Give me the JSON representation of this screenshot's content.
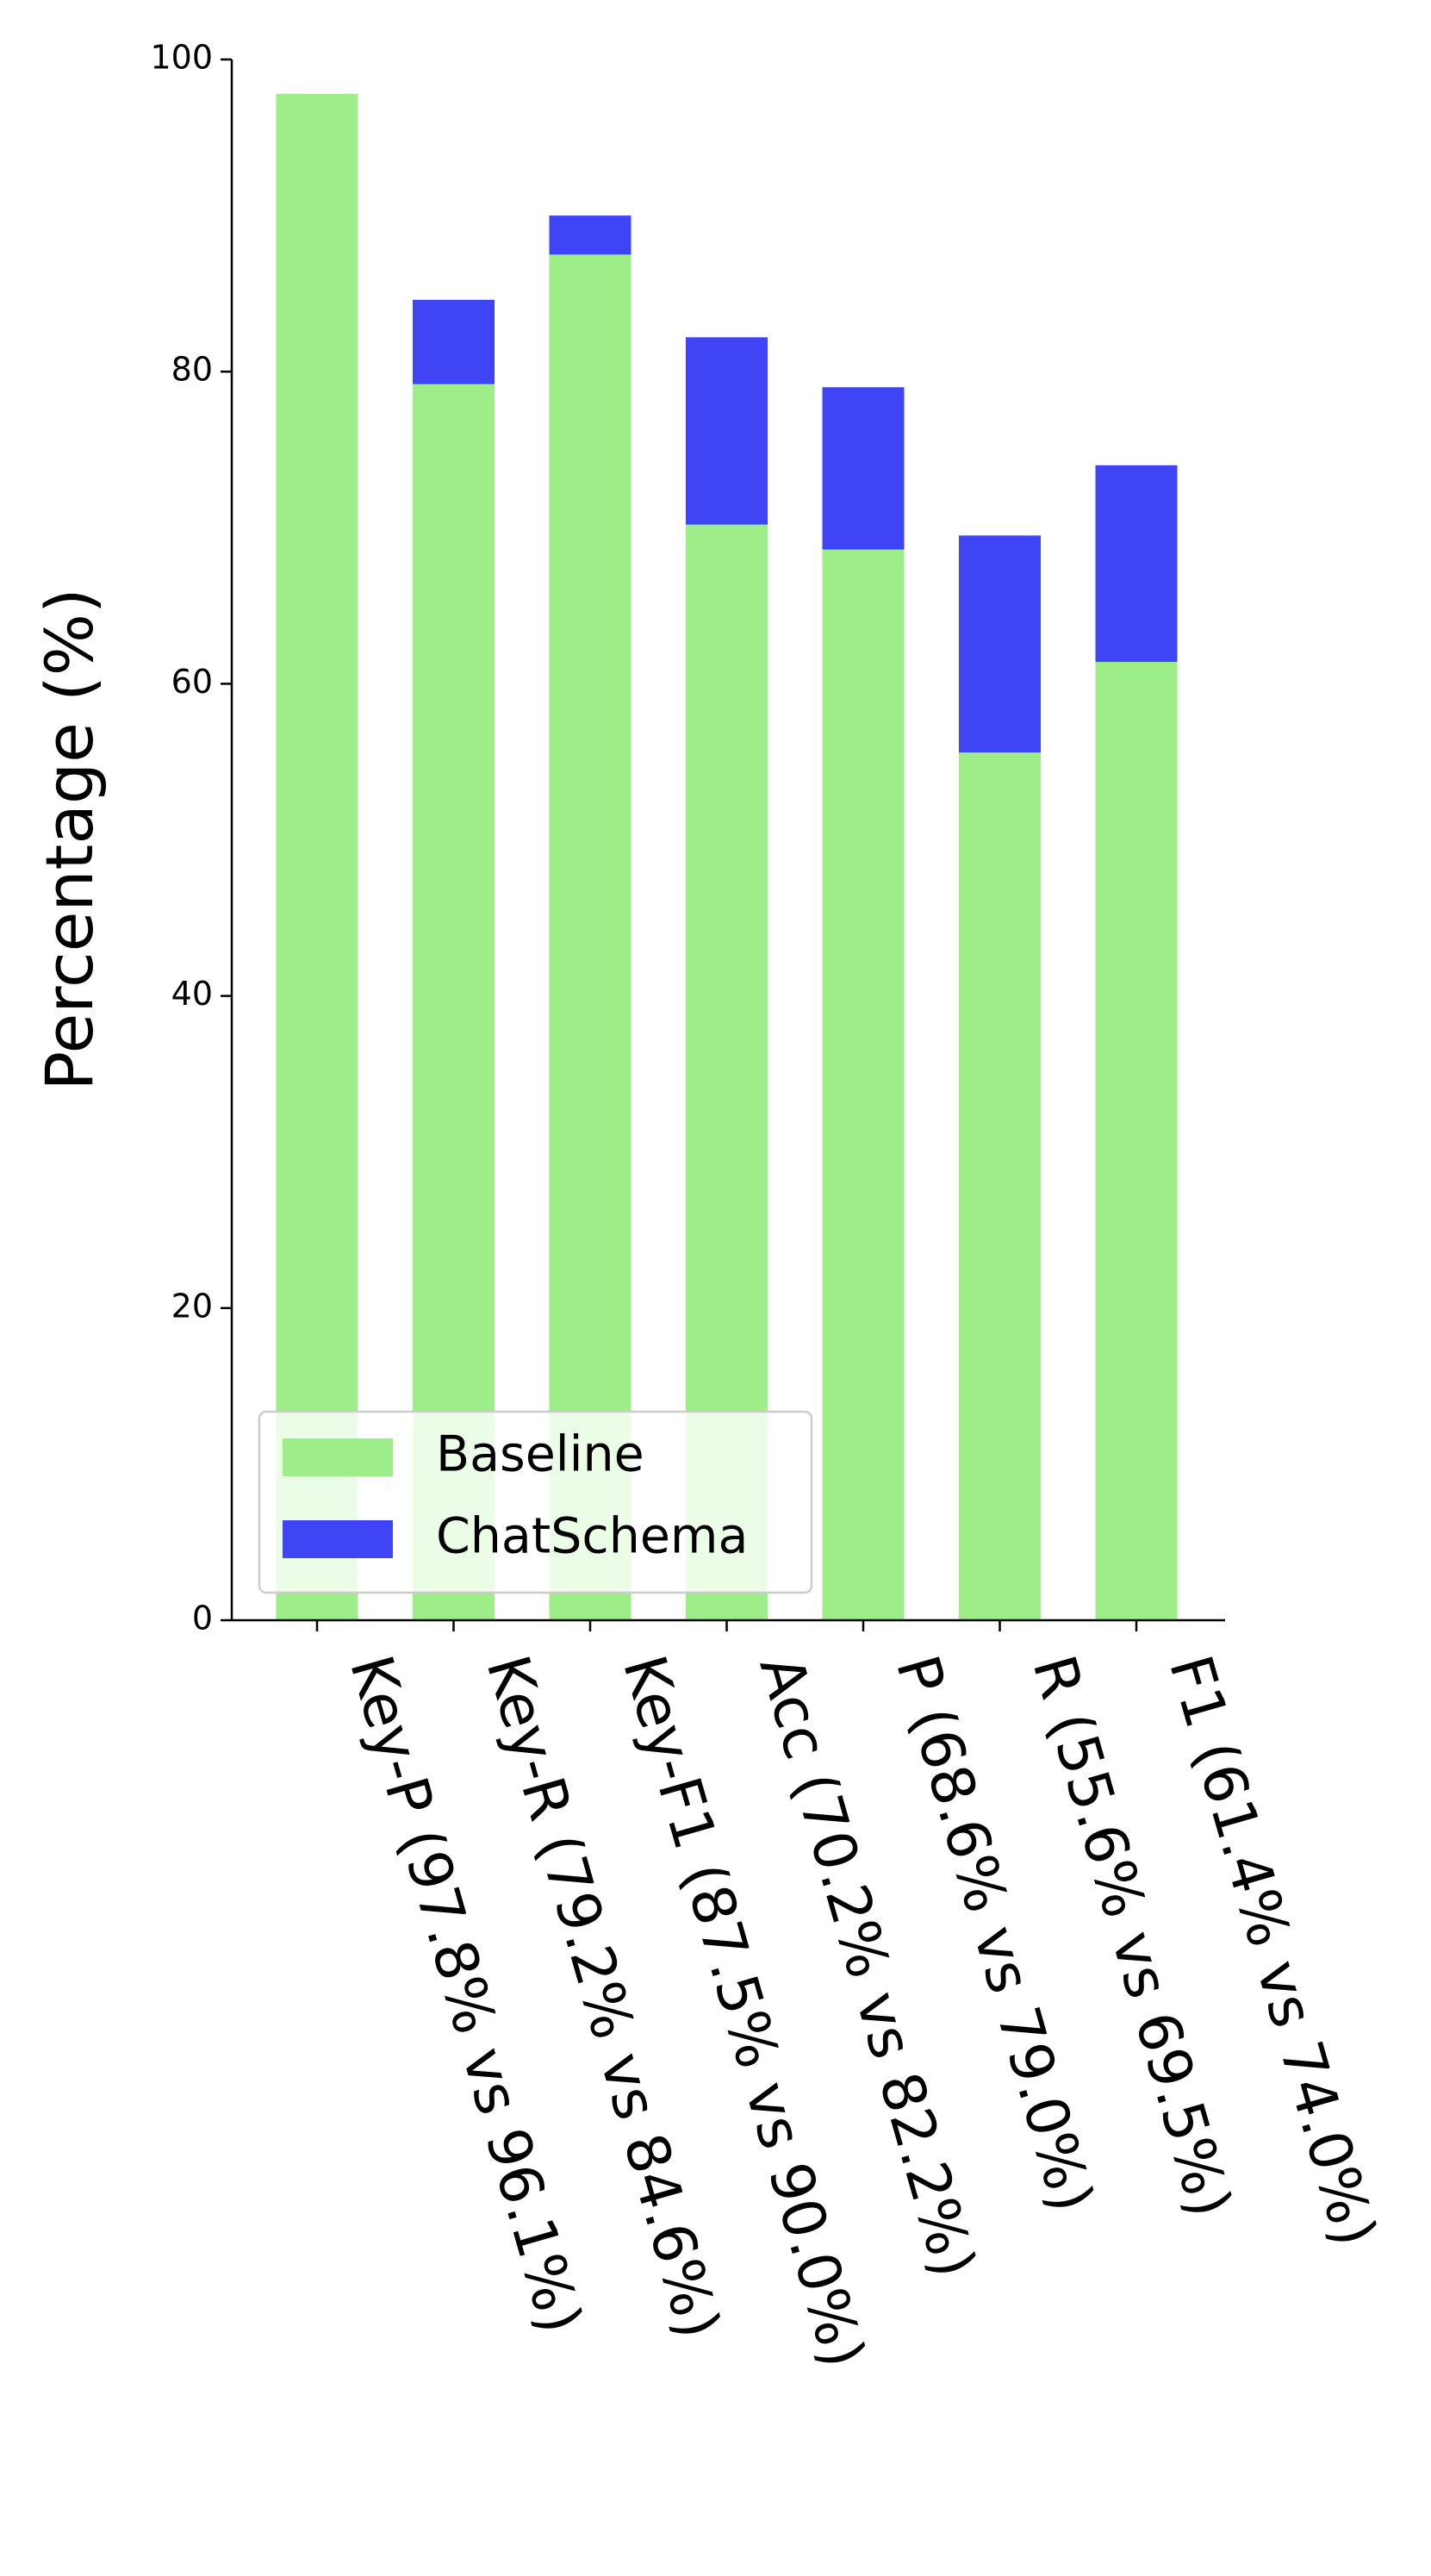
{
  "chart_data": {
    "type": "bar",
    "overlap": true,
    "ylabel": "Percentage (%)",
    "categories": [
      "Key-P (97.8% vs 96.1%)",
      "Key-R (79.2% vs 84.6%)",
      "Key-F1 (87.5% vs 90.0%)",
      "Acc (70.2% vs 82.2%)",
      "P (68.6% vs 79.0%)",
      "R (55.6% vs 69.5%)",
      "F1 (61.4% vs 74.0%)"
    ],
    "series": [
      {
        "name": "ChatSchema",
        "color": "#3f45f4",
        "values": [
          96.1,
          84.6,
          90.0,
          82.2,
          79.0,
          69.5,
          74.0
        ]
      },
      {
        "name": "Baseline",
        "color": "#9ded88",
        "values": [
          97.8,
          79.2,
          87.5,
          70.2,
          68.6,
          55.6,
          61.4
        ]
      }
    ],
    "legend_order": [
      "Baseline",
      "ChatSchema"
    ],
    "ylim": [
      0,
      100
    ],
    "yticks": [
      0,
      20,
      40,
      60,
      80,
      100
    ],
    "grid": false,
    "legend": "lower left"
  }
}
